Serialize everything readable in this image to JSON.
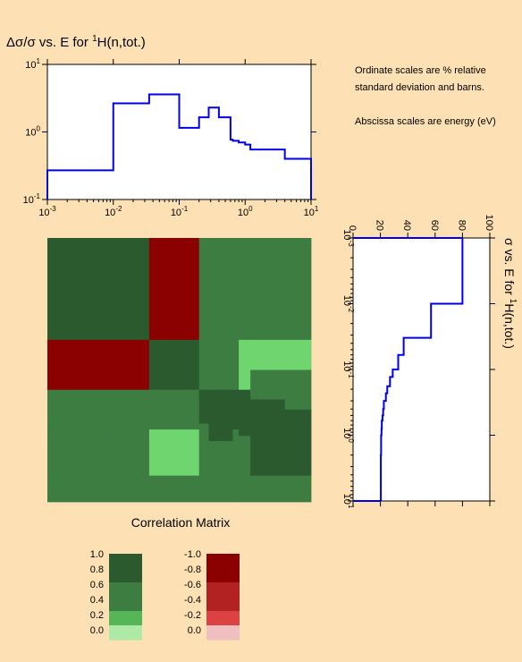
{
  "chart_data": [
    {
      "type": "line",
      "step": true,
      "title_prefix": "Δσ/σ vs. E for ",
      "title_sup": "1",
      "title_suffix": "H(n,tot.)",
      "x_scale": "log",
      "y_scale": "log",
      "xlim": [
        0.001,
        10
      ],
      "ylim": [
        0.1,
        10
      ],
      "x_ticks": [
        {
          "base": "10",
          "exp": "-3"
        },
        {
          "base": "10",
          "exp": "-2"
        },
        {
          "base": "10",
          "exp": "-1"
        },
        {
          "base": "10",
          "exp": "0"
        },
        {
          "base": "10",
          "exp": "1"
        }
      ],
      "y_ticks": [
        {
          "base": "10",
          "exp": "-1"
        },
        {
          "base": "10",
          "exp": "0"
        },
        {
          "base": "10",
          "exp": "1"
        }
      ],
      "line_color": "#0000ee",
      "x": [
        0.001,
        0.01,
        0.035,
        0.1,
        0.2,
        0.28,
        0.4,
        0.6,
        0.65,
        0.8,
        1.0,
        1.2,
        4.0,
        10
      ],
      "y": [
        0.27,
        2.65,
        3.6,
        1.15,
        1.65,
        2.3,
        1.65,
        0.77,
        0.74,
        0.7,
        0.65,
        0.55,
        0.4,
        0.4
      ]
    },
    {
      "type": "line",
      "step": true,
      "orientation": "rotated",
      "title_prefix": "σ vs. E for ",
      "title_sup": "1",
      "title_suffix": "H(n,tot.)",
      "value_axis": {
        "lim": [
          0,
          100
        ],
        "ticks": [
          "0",
          "20",
          "40",
          "60",
          "80",
          "100"
        ]
      },
      "energy_axis": {
        "scale": "log",
        "lim": [
          0.001,
          10
        ],
        "ticks": [
          {
            "base": "10",
            "exp": "-3"
          },
          {
            "base": "10",
            "exp": "-2"
          },
          {
            "base": "10",
            "exp": "-1"
          },
          {
            "base": "10",
            "exp": "0"
          },
          {
            "base": "10",
            "exp": "1"
          }
        ]
      },
      "line_color": "#0000ee",
      "energy": [
        0.001,
        0.01,
        0.033,
        0.06,
        0.1,
        0.13,
        0.18,
        0.23,
        0.3,
        0.4,
        0.5,
        0.6,
        0.8,
        1.0,
        2.0,
        10
      ],
      "sigma": [
        80,
        57,
        37,
        33,
        29,
        27,
        25,
        24,
        22.5,
        22,
        21.5,
        21,
        20.8,
        20.5,
        20.3,
        20.3
      ]
    },
    {
      "type": "heatmap",
      "title": "Correlation Matrix",
      "grid_edges": [
        0.001,
        0.01,
        0.035,
        0.1,
        0.2,
        0.28,
        0.4,
        0.6,
        0.65,
        0.8,
        1.0,
        1.2,
        4.0,
        10
      ],
      "rows": [
        [
          0.9,
          0.9,
          -0.8,
          -0.8,
          0.6,
          0.6,
          0.6,
          0.6,
          0.6,
          0.6,
          0.6,
          0.6,
          0.6
        ],
        [
          0.9,
          0.9,
          -0.8,
          -0.8,
          0.6,
          0.6,
          0.6,
          0.6,
          0.6,
          0.6,
          0.6,
          0.6,
          0.6
        ],
        [
          -0.8,
          -0.8,
          0.9,
          0.9,
          0.6,
          0.5,
          0.5,
          0.5,
          0.5,
          0.3,
          0.3,
          0.3,
          0.3
        ],
        [
          -0.8,
          -0.8,
          0.9,
          0.9,
          0.6,
          0.5,
          0.5,
          0.5,
          0.5,
          0.3,
          0.3,
          0.6,
          0.6
        ],
        [
          0.6,
          0.6,
          0.6,
          0.6,
          0.9,
          0.9,
          0.9,
          0.9,
          0.9,
          0.9,
          0.9,
          0.6,
          0.6
        ],
        [
          0.6,
          0.6,
          0.6,
          0.6,
          0.9,
          0.9,
          0.9,
          0.9,
          0.9,
          0.9,
          0.9,
          0.9,
          0.6
        ],
        [
          0.6,
          0.6,
          0.5,
          0.5,
          0.9,
          0.9,
          0.9,
          0.9,
          0.9,
          0.9,
          0.9,
          0.9,
          0.9
        ],
        [
          0.6,
          0.6,
          0.5,
          0.5,
          0.9,
          0.9,
          0.9,
          0.9,
          0.9,
          0.9,
          0.9,
          0.9,
          0.9
        ],
        [
          0.6,
          0.6,
          0.5,
          0.5,
          0.6,
          0.9,
          0.9,
          0.9,
          0.9,
          0.9,
          0.9,
          0.9,
          0.9
        ],
        [
          0.6,
          0.6,
          0.3,
          0.3,
          0.6,
          0.9,
          0.9,
          0.9,
          0.6,
          0.9,
          0.9,
          0.9,
          0.9
        ],
        [
          0.6,
          0.6,
          0.3,
          0.3,
          0.6,
          0.9,
          0.9,
          0.9,
          0.6,
          0.6,
          0.6,
          0.9,
          0.9
        ],
        [
          0.6,
          0.6,
          0.3,
          0.3,
          0.6,
          0.6,
          0.6,
          0.6,
          0.6,
          0.6,
          0.6,
          0.9,
          0.9
        ],
        [
          0.6,
          0.6,
          0.6,
          0.6,
          0.6,
          0.6,
          0.6,
          0.6,
          0.6,
          0.6,
          0.6,
          0.6,
          0.6
        ]
      ]
    }
  ],
  "notes": [
    "Ordinate scales are % relative",
    "standard deviation and barns.",
    "Abscissa scales are energy (eV)"
  ],
  "legend_positive": {
    "labels": [
      "1.0",
      "0.8",
      "0.6",
      "0.4",
      "0.2",
      "0.0"
    ],
    "colors": [
      "#2a5a2e",
      "#2a5a2e",
      "#3d7d42",
      "#3d7d42",
      "#56b556",
      "#aee9a5"
    ]
  },
  "legend_negative": {
    "labels": [
      "-1.0",
      "-0.8",
      "-0.6",
      "-0.4",
      "-0.2",
      "0.0"
    ],
    "colors": [
      "#8b0000",
      "#8b0000",
      "#b22222",
      "#b22222",
      "#dc4242",
      "#f0c0c0"
    ]
  }
}
